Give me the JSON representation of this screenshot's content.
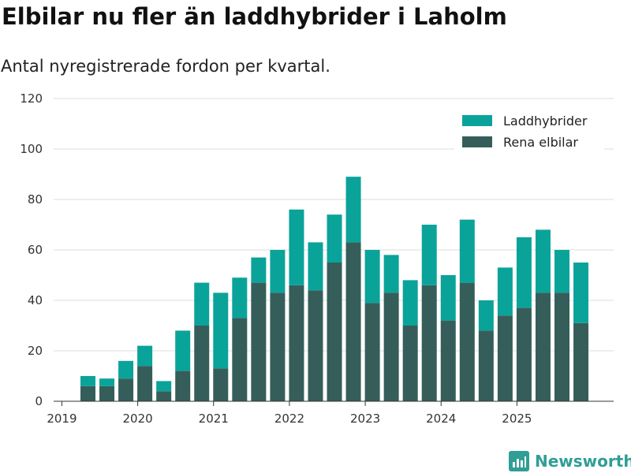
{
  "chart_data": {
    "type": "bar",
    "stacked": true,
    "title": "Elbilar nu fler än laddhybrider i Laholm",
    "subtitle": "Antal nyregistrerade fordon per kvartal.",
    "xlabel": "",
    "ylabel": "",
    "ylim": [
      0,
      120
    ],
    "yticks": [
      "0",
      "20",
      "40",
      "60",
      "80",
      "100",
      "120"
    ],
    "xticks": [
      "2019",
      "2020",
      "2021",
      "2022",
      "2023",
      "2024",
      "2025"
    ],
    "grid": true,
    "legend_position": "top-right",
    "categories": [
      "2019 Q2",
      "2019 Q3",
      "2019 Q4",
      "2020 Q1",
      "2020 Q2",
      "2020 Q3",
      "2020 Q4",
      "2021 Q1",
      "2021 Q2",
      "2021 Q3",
      "2021 Q4",
      "2022 Q1",
      "2022 Q2",
      "2022 Q3",
      "2022 Q4",
      "2023 Q1",
      "2023 Q2",
      "2023 Q3",
      "2023 Q4",
      "2024 Q1",
      "2024 Q2",
      "2024 Q3",
      "2024 Q4",
      "2025 Q1",
      "2025 Q2",
      "2025 Q3",
      "2025 Q4"
    ],
    "series": [
      {
        "name": "Rena elbilar",
        "color": "#355e5a",
        "values": [
          6,
          6,
          9,
          14,
          4,
          12,
          30,
          13,
          33,
          47,
          43,
          46,
          44,
          55,
          63,
          39,
          43,
          30,
          46,
          32,
          47,
          28,
          34,
          37,
          43,
          43,
          31
        ]
      },
      {
        "name": "Laddhybrider",
        "color": "#0aa39a",
        "values": [
          4,
          3,
          7,
          8,
          4,
          16,
          17,
          30,
          16,
          10,
          17,
          30,
          19,
          19,
          26,
          21,
          15,
          18,
          24,
          18,
          25,
          12,
          19,
          28,
          25,
          17,
          24
        ]
      }
    ],
    "legend": [
      "Laddhybrider",
      "Rena elbilar"
    ]
  },
  "brand": {
    "name": "Newsworthy",
    "icon": "newsworthy-logo-icon",
    "color": "#2f9e96"
  }
}
